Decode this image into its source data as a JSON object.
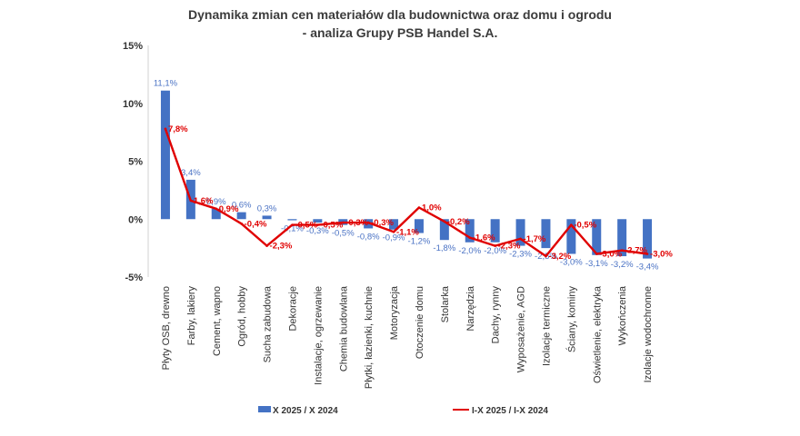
{
  "title": "Dynamika zmian cen materiałów dla budownictwa oraz domu i ogrodu",
  "subtitle": "- analiza Grupy PSB Handel S.A.",
  "chart_data": {
    "type": "bar",
    "title": "Dynamika zmian cen materiałów dla budownictwa oraz domu i ogrodu",
    "subtitle": "- analiza Grupy PSB Handel S.A.",
    "categories": [
      "Płyty OSB, drewno",
      "Farby, lakiery",
      "Cement, wapno",
      "Ogród, hobby",
      "Sucha zabudowa",
      "Dekoracje",
      "Instalacje, ogrzewanie",
      "Chemia budowlana",
      "Płytki, łazienki, kuchnie",
      "Motoryzacja",
      "Otoczenie domu",
      "Stolarka",
      "Narzędzia",
      "Dachy, rynny",
      "Wyposażenie, AGD",
      "Izolacje termiczne",
      "Ściany, kominy",
      "Oświetlenie, elektryka",
      "Wykończenia",
      "Izolacje wodochronne"
    ],
    "series": [
      {
        "name": "X 2025 / X 2024",
        "type": "bar",
        "color": "#4472c4",
        "values": [
          11.1,
          3.4,
          0.9,
          0.6,
          0.3,
          -0.1,
          -0.3,
          -0.5,
          -0.8,
          -0.9,
          -1.2,
          -1.8,
          -2.0,
          -2.0,
          -2.3,
          -2.5,
          -3.0,
          -3.1,
          -3.2,
          -3.4
        ],
        "labels": [
          "11,1%",
          "3,4%",
          "0,9%",
          "0,6%",
          "0,3%",
          "-0,1%",
          "-0,3%",
          "-0,5%",
          "-0,8%",
          "-0,9%",
          "-1,2%",
          "-1,8%",
          "-2,0%",
          "-2,0%",
          "-2,3%",
          "-2,5%",
          "-3,0%",
          "-3,1%",
          "-3,2%",
          "-3,4%"
        ]
      },
      {
        "name": "I-X 2025 / I-X 2024",
        "type": "line",
        "color": "#e00000",
        "values": [
          7.8,
          1.6,
          0.9,
          -0.4,
          -2.3,
          -0.5,
          -0.5,
          -0.3,
          -0.3,
          -1.1,
          1.0,
          -0.2,
          -1.6,
          -2.3,
          -1.7,
          -3.2,
          -0.5,
          -3.0,
          -2.7,
          -3.0
        ],
        "labels": [
          "7,8%",
          "1,6%",
          "0,9%",
          "-0,4%",
          "-2,3%",
          "-0,5%",
          "-0,5%",
          "-0,3%",
          "-0,3%",
          "-1,1%",
          "1,0%",
          "-0,2%",
          "-1,6%",
          "-2,3%",
          "-1,7%",
          "-3,2%",
          "-0,5%",
          "-3,0%",
          "-2,7%",
          "-3,0%"
        ]
      }
    ],
    "yticks": [
      "15%",
      "10%",
      "5%",
      "0%",
      "-5%"
    ],
    "ylim": [
      -5,
      15
    ],
    "grid": false,
    "legend": "bottom"
  }
}
